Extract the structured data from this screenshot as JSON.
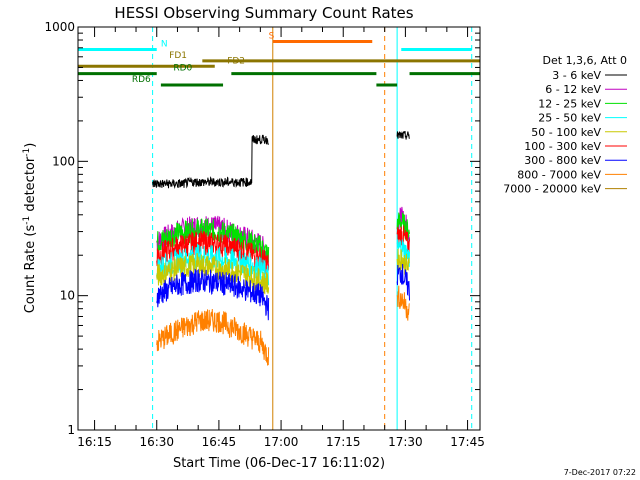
{
  "title": "HESSI Observing Summary Count Rates",
  "footer_date": "7-Dec-2017 07:22",
  "colors": {
    "black": "#000000",
    "magenta": "#c000c0",
    "green": "#00e000",
    "cyan": "#00ffff",
    "yellow": "#c8c800",
    "red": "#ff0000",
    "blue": "#0000ff",
    "orange": "#ff8000",
    "brown": "#b08000",
    "flag_cyan": "#00ffff",
    "flag_olive": "#8b7500",
    "flag_green": "#007000",
    "flag_orange": "#ff6a00",
    "s_flag_vline": "#d08000"
  },
  "chart_data": {
    "type": "line",
    "title": "HESSI Observing Summary Count Rates",
    "xlabel": "Start Time (06-Dec-17 16:11:02)",
    "ylabel_main": "Count Rate (s",
    "ylabel_sup1": "-1",
    "ylabel_mid": " detector",
    "ylabel_sup2": "-1",
    "ylabel_end": ")",
    "y_scale": "log",
    "ylim": [
      1,
      1000
    ],
    "xlim": [
      "16:11",
      "17:48"
    ],
    "x_ticks": [
      "16:15",
      "16:30",
      "16:45",
      "17:00",
      "17:15",
      "17:30",
      "17:45"
    ],
    "y_ticks": [
      "1",
      "10",
      "100",
      "1000"
    ],
    "legend_title": "Det 1,3,6, Att 0",
    "legend_position": "right",
    "series": [
      {
        "name": "3 - 6 keV",
        "color": "#000000",
        "segments": [
          {
            "t": [
              "16:29",
              "16:37",
              "16:38",
              "16:53",
              "16:54",
              "16:57"
            ],
            "v": [
              68,
              69,
              70,
              145,
              145,
              145
            ]
          },
          {
            "t": [
              "17:28",
              "17:31"
            ],
            "v": [
              155,
              150
            ]
          }
        ]
      },
      {
        "name": "6 - 12 keV",
        "color": "#c000c0",
        "segments": [
          {
            "t": [
              "16:30",
              "16:35",
              "16:40",
              "16:45",
              "16:50",
              "16:55",
              "16:57"
            ],
            "v": [
              25,
              30,
              33,
              32,
              28,
              24,
              20
            ]
          },
          {
            "t": [
              "17:28",
              "17:29",
              "17:30",
              "17:31"
            ],
            "v": [
              35,
              38,
              34,
              30
            ]
          }
        ]
      },
      {
        "name": "12 - 25 keV",
        "color": "#00e000",
        "segments": [
          {
            "t": [
              "16:30",
              "16:35",
              "16:40",
              "16:45",
              "16:50",
              "16:55",
              "16:57"
            ],
            "v": [
              25,
              29,
              31,
              30,
              27,
              23,
              20
            ]
          },
          {
            "t": [
              "17:28",
              "17:29",
              "17:30",
              "17:31"
            ],
            "v": [
              34,
              36,
              32,
              29
            ]
          }
        ]
      },
      {
        "name": "25 - 50 keV",
        "color": "#00ffff",
        "segments": [
          {
            "t": [
              "16:30",
              "16:35",
              "16:40",
              "16:45",
              "16:50",
              "16:55",
              "16:57"
            ],
            "v": [
              16,
              18,
              20,
              19,
              18,
              16,
              14
            ]
          },
          {
            "t": [
              "17:28",
              "17:29",
              "17:30",
              "17:31"
            ],
            "v": [
              22,
              23,
              21,
              19
            ]
          }
        ]
      },
      {
        "name": "50 - 100 keV",
        "color": "#c8c800",
        "segments": [
          {
            "t": [
              "16:30",
              "16:35",
              "16:40",
              "16:45",
              "16:50",
              "16:55",
              "16:57"
            ],
            "v": [
              14,
              16,
              17,
              16,
              15,
              13,
              12
            ]
          },
          {
            "t": [
              "17:28",
              "17:29",
              "17:30",
              "17:31"
            ],
            "v": [
              18,
              19,
              17,
              16
            ]
          }
        ]
      },
      {
        "name": "100 - 300 keV",
        "color": "#ff0000",
        "segments": [
          {
            "t": [
              "16:30",
              "16:35",
              "16:40",
              "16:45",
              "16:50",
              "16:55",
              "16:57"
            ],
            "v": [
              20,
              23,
              25,
              24,
              22,
              19,
              17
            ]
          },
          {
            "t": [
              "17:28",
              "17:29",
              "17:30",
              "17:31"
            ],
            "v": [
              27,
              29,
              26,
              23
            ]
          }
        ]
      },
      {
        "name": "300 - 800 keV",
        "color": "#0000ff",
        "segments": [
          {
            "t": [
              "16:30",
              "16:35",
              "16:40",
              "16:45",
              "16:50",
              "16:55",
              "16:57"
            ],
            "v": [
              10,
              12,
              13,
              12.5,
              11.5,
              10,
              8
            ]
          },
          {
            "t": [
              "17:28",
              "17:29",
              "17:30",
              "17:31"
            ],
            "v": [
              14,
              15,
              13,
              11
            ]
          }
        ]
      },
      {
        "name": "800 - 7000 keV",
        "color": "#ff8000",
        "segments": [
          {
            "t": [
              "16:30",
              "16:35",
              "16:40",
              "16:45",
              "16:50",
              "16:55",
              "16:57"
            ],
            "v": [
              4.5,
              5.5,
              6.5,
              6.5,
              5.5,
              4.5,
              3.5
            ]
          },
          {
            "t": [
              "17:28",
              "17:29",
              "17:30",
              "17:31"
            ],
            "v": [
              10,
              9.5,
              8.5,
              7.5
            ]
          }
        ]
      },
      {
        "name": "7000 - 20000 keV",
        "color": "#b08000",
        "segments": []
      }
    ],
    "flags": [
      {
        "label": "N",
        "color": "#00ffff",
        "y": 680,
        "segments": [
          [
            "16:11",
            "16:30"
          ],
          [
            "17:29",
            "17:46"
          ]
        ],
        "label_at": "16:31"
      },
      {
        "label": "S",
        "color": "#ff6a00",
        "y": 780,
        "segments": [
          [
            "16:58",
            "17:22"
          ]
        ],
        "label_at": "16:57"
      },
      {
        "label": "FD1",
        "color": "#8b7500",
        "y": 560,
        "segments": [
          [
            "16:41",
            "17:48"
          ]
        ],
        "label_at": "16:33"
      },
      {
        "label": "FD2",
        "color": "#8b7500",
        "y": 510,
        "segments": [
          [
            "16:11",
            "16:44"
          ]
        ],
        "label_at": "16:47"
      },
      {
        "label": "RD0",
        "color": "#007000",
        "y": 450,
        "segments": [
          [
            "16:11",
            "16:30"
          ],
          [
            "16:48",
            "17:23"
          ],
          [
            "17:31",
            "17:48"
          ]
        ],
        "label_at": "16:34"
      },
      {
        "label": "RD6",
        "color": "#007000",
        "y": 370,
        "segments": [
          [
            "16:31",
            "16:46"
          ],
          [
            "17:23",
            "17:28"
          ]
        ],
        "label_at": "16:24"
      }
    ],
    "vlines": [
      {
        "t": "16:11",
        "color": "#00ffff",
        "style": "solid"
      },
      {
        "t": "16:29",
        "color": "#00ffff",
        "style": "dashed"
      },
      {
        "t": "16:58",
        "color": "#d08000",
        "style": "solid"
      },
      {
        "t": "17:25",
        "color": "#ff8000",
        "style": "dashed"
      },
      {
        "t": "17:28",
        "color": "#00ffff",
        "style": "solid"
      },
      {
        "t": "17:46",
        "color": "#00ffff",
        "style": "dashed"
      }
    ]
  }
}
